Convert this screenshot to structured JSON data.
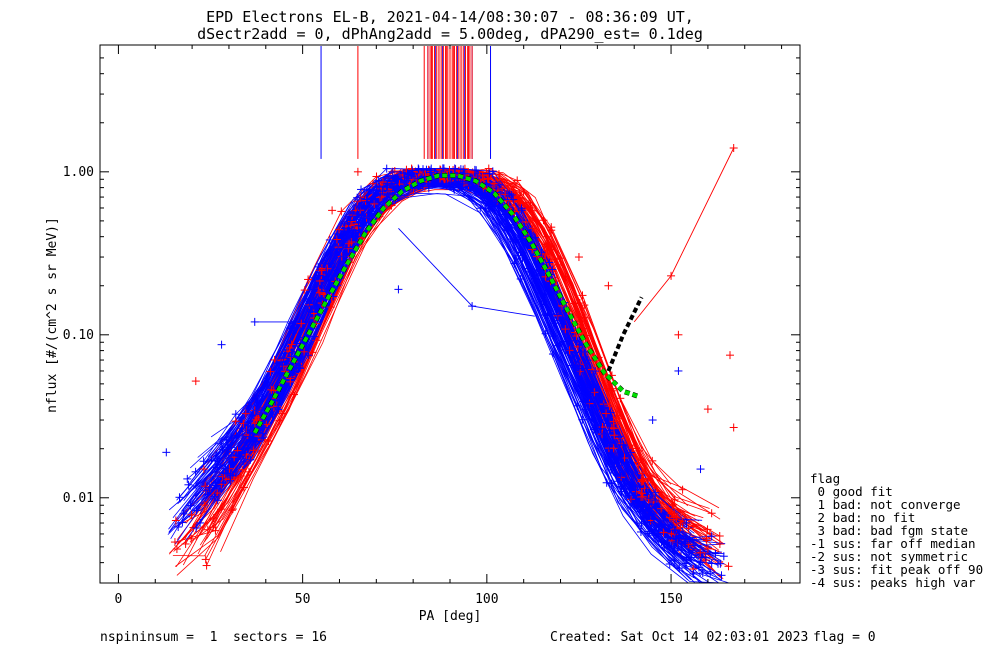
{
  "chart_data": {
    "type": "line",
    "title": "EPD Electrons EL-B, 2021-04-14/08:30:07 - 08:36:09 UT,",
    "subtitle": "dSectr2add = 0, dPhAng2add = 5.00deg, dPA290_est=   0.1deg",
    "xlabel": "PA [deg]",
    "ylabel": "nflux [#/(cm^2 s sr MeV)]",
    "xlim": [
      -5,
      185
    ],
    "ylim": [
      0.003,
      6
    ],
    "yscale": "log",
    "xticks": [
      0,
      50,
      100,
      150
    ],
    "yticks": [
      {
        "value": 0.01,
        "label": "0.01"
      },
      {
        "value": 0.1,
        "label": "0.10"
      },
      {
        "value": 1.0,
        "label": "1.00"
      }
    ],
    "colors": {
      "red_series": "#ff0000",
      "blue_series": "#0000ff",
      "fit_curve": "#00dd00",
      "fit_tail": "#000000"
    },
    "red_profile": {
      "x": [
        20,
        25,
        30,
        35,
        40,
        45,
        50,
        55,
        60,
        65,
        70,
        75,
        80,
        85,
        90,
        95,
        100,
        105,
        110,
        115,
        120,
        125,
        130,
        135,
        140,
        145,
        150,
        155,
        160,
        165
      ],
      "y": [
        0.005,
        0.008,
        0.012,
        0.02,
        0.03,
        0.05,
        0.09,
        0.17,
        0.3,
        0.5,
        0.68,
        0.82,
        0.9,
        0.95,
        0.95,
        0.92,
        0.86,
        0.75,
        0.57,
        0.36,
        0.2,
        0.1,
        0.05,
        0.025,
        0.014,
        0.009,
        0.007,
        0.006,
        0.005,
        0.004
      ]
    },
    "blue_profile": {
      "x": [
        15,
        20,
        25,
        30,
        35,
        40,
        45,
        50,
        55,
        60,
        65,
        70,
        75,
        80,
        85,
        90,
        95,
        100,
        105,
        110,
        115,
        120,
        125,
        130,
        135,
        140,
        145,
        150,
        155,
        160
      ],
      "y": [
        0.006,
        0.009,
        0.012,
        0.016,
        0.022,
        0.032,
        0.05,
        0.085,
        0.15,
        0.27,
        0.45,
        0.66,
        0.82,
        0.9,
        0.93,
        0.93,
        0.9,
        0.82,
        0.64,
        0.42,
        0.24,
        0.13,
        0.07,
        0.04,
        0.02,
        0.012,
        0.008,
        0.006,
        0.005,
        0.004
      ]
    },
    "fit_curve": {
      "x": [
        37,
        42,
        47,
        52,
        57,
        62,
        67,
        72,
        77,
        82,
        87,
        92,
        97,
        102,
        107,
        112,
        117,
        122,
        127,
        132,
        137,
        141
      ],
      "y": [
        0.025,
        0.04,
        0.065,
        0.105,
        0.17,
        0.27,
        0.42,
        0.6,
        0.76,
        0.88,
        0.95,
        0.95,
        0.88,
        0.74,
        0.55,
        0.37,
        0.23,
        0.14,
        0.087,
        0.058,
        0.045,
        0.042
      ]
    },
    "fit_tail": {
      "x": [
        133,
        137,
        142
      ],
      "y": [
        0.06,
        0.1,
        0.17
      ]
    },
    "red_verticals_x": [
      65,
      83,
      85,
      87,
      89,
      91,
      93,
      95
    ],
    "blue_verticals_x": [
      55,
      84,
      86,
      88,
      90,
      92,
      94,
      96,
      101
    ],
    "red_outliers": [
      {
        "x": 21,
        "y": 0.052
      },
      {
        "x": 65,
        "y": 1.0
      },
      {
        "x": 167,
        "y": 1.4
      },
      {
        "x": 150,
        "y": 0.23
      },
      {
        "x": 166,
        "y": 0.075
      },
      {
        "x": 152,
        "y": 0.1
      },
      {
        "x": 160,
        "y": 0.035
      },
      {
        "x": 167,
        "y": 0.027
      },
      {
        "x": 58,
        "y": 0.58
      },
      {
        "x": 125,
        "y": 0.3
      },
      {
        "x": 133,
        "y": 0.2
      }
    ],
    "blue_outliers": [
      {
        "x": 28,
        "y": 0.087
      },
      {
        "x": 37,
        "y": 0.12
      },
      {
        "x": 13,
        "y": 0.019
      },
      {
        "x": 76,
        "y": 0.19
      },
      {
        "x": 96,
        "y": 0.15
      },
      {
        "x": 152,
        "y": 0.06
      },
      {
        "x": 145,
        "y": 0.03
      },
      {
        "x": 158,
        "y": 0.015
      }
    ]
  },
  "legend": {
    "title": "flag",
    "items": [
      " 0 good fit",
      " 1 bad: not converge",
      " 2 bad: no fit",
      " 3 bad: bad fgm state",
      "-1 sus: far off median",
      "-2 sus: not symmetric",
      "-3 sus: fit peak off 90",
      "-4 sus: peaks high var"
    ]
  },
  "footer": {
    "left": "nspininsum =  1  sectors = 16",
    "created": "Created: Sat Oct 14 02:03:01 2023",
    "flag": "flag = 0"
  }
}
